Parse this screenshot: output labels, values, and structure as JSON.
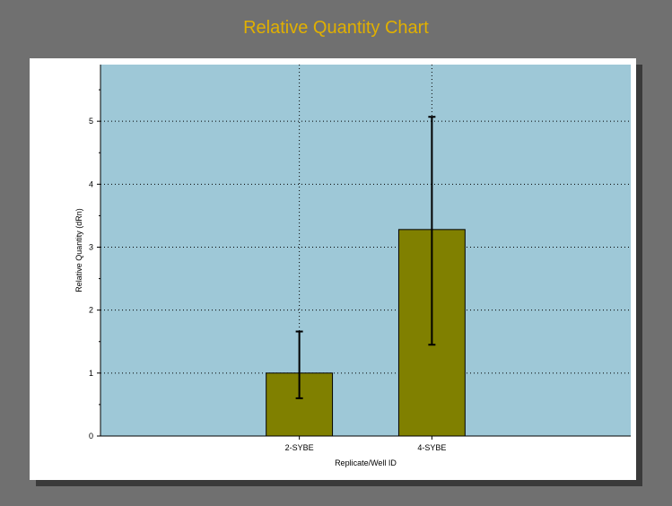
{
  "title": "Relative Quantity Chart",
  "chart_data": {
    "type": "bar",
    "title": "Relative Quantity Chart",
    "xlabel": "Replicate/Well ID",
    "ylabel": "Relative Quantity (dRn)",
    "categories": [
      "2-SYBE",
      "4-SYBE"
    ],
    "values": [
      1.0,
      3.28
    ],
    "error_low": [
      0.6,
      1.45
    ],
    "error_high": [
      1.66,
      5.07
    ],
    "ylim": [
      0,
      5.9
    ],
    "yticks": [
      0,
      1,
      2,
      3,
      4,
      5
    ],
    "grid": true,
    "colors": {
      "bar": "#808000",
      "plot_background": "#9ec8d7",
      "title": "#e1b000",
      "page_background": "#707070",
      "grid": "#000000"
    }
  }
}
